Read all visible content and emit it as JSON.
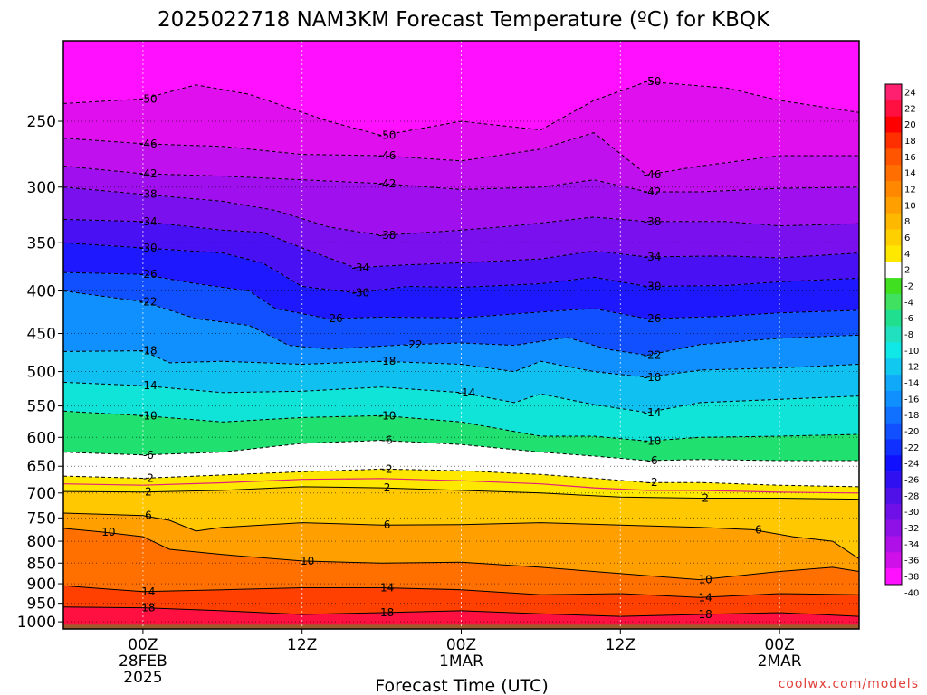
{
  "title": "2025022718 NAM3KM Forecast Temperature (ºC) for KBQK",
  "credit": "coolwx.com/models",
  "colors": {
    "ground": "#a05a2c",
    "freezing_line": "#e0207a",
    "credit_text": "#e0403a"
  },
  "chart_data": {
    "type": "heatmap",
    "title": "2025022718 NAM3KM Forecast Temperature (ºC) for KBQK",
    "xlabel": "Forecast Time (UTC)",
    "ylabel": "",
    "x_ticks": [
      {
        "hour": 6,
        "lines": [
          "00Z",
          "28FEB",
          "2025"
        ]
      },
      {
        "hour": 18,
        "lines": [
          "12Z"
        ]
      },
      {
        "hour": 30,
        "lines": [
          "00Z",
          "1MAR"
        ]
      },
      {
        "hour": 42,
        "lines": [
          "12Z"
        ]
      },
      {
        "hour": 54,
        "lines": [
          "00Z",
          "2MAR"
        ]
      }
    ],
    "xlim": [
      0,
      60
    ],
    "y_ticks": [
      250,
      300,
      350,
      400,
      450,
      500,
      550,
      600,
      650,
      700,
      750,
      800,
      850,
      900,
      950,
      1000
    ],
    "y_scale": "log-pressure (hPa)",
    "ylim": [
      1020,
      200
    ],
    "grid": true,
    "colorbar": {
      "labels": [
        "24",
        "22",
        "20",
        "18",
        "16",
        "14",
        "12",
        "10",
        "8",
        "6",
        "4",
        "2",
        "-2",
        "-4",
        "-6",
        "-8",
        "-10",
        "-12",
        "-14",
        "-16",
        "-18",
        "-20",
        "-22",
        "-24",
        "-26",
        "-28",
        "-30",
        "-32",
        "-34",
        "-36",
        "-38",
        "-40"
      ],
      "colors": [
        "#ff2070",
        "#ff1040",
        "#ff0000",
        "#ff3000",
        "#ff5500",
        "#ff6e00",
        "#ff8800",
        "#ffa000",
        "#ffb800",
        "#ffd000",
        "#ffe800",
        "#ffffff",
        "#40e020",
        "#40e060",
        "#20e090",
        "#20e0c0",
        "#10e8e8",
        "#10c8f0",
        "#10a8f8",
        "#1090ff",
        "#1070ff",
        "#1050ff",
        "#1030ff",
        "#1010ff",
        "#3010f0",
        "#5010e8",
        "#7010e8",
        "#9010e8",
        "#b010e8",
        "#d010e8",
        "#ff10ff"
      ]
    },
    "isotherms": [
      {
        "label": "-50",
        "pts": [
          [
            0,
            238
          ],
          [
            6,
            235
          ],
          [
            10,
            226
          ],
          [
            14,
            232
          ],
          [
            20,
            250
          ],
          [
            24,
            260
          ],
          [
            30,
            250
          ],
          [
            36,
            256
          ],
          [
            40,
            236
          ],
          [
            44,
            224
          ],
          [
            50,
            228
          ],
          [
            54,
            236
          ],
          [
            60,
            244
          ]
        ]
      },
      {
        "label": "-46",
        "pts": [
          [
            0,
            262
          ],
          [
            6,
            266
          ],
          [
            12,
            268
          ],
          [
            18,
            274
          ],
          [
            24,
            275
          ],
          [
            30,
            279
          ],
          [
            36,
            270
          ],
          [
            40,
            258
          ],
          [
            44,
            290
          ],
          [
            48,
            283
          ],
          [
            54,
            275
          ],
          [
            60,
            275
          ]
        ]
      },
      {
        "label": "-42",
        "pts": [
          [
            0,
            283
          ],
          [
            6,
            289
          ],
          [
            12,
            291
          ],
          [
            18,
            294
          ],
          [
            24,
            297
          ],
          [
            30,
            302
          ],
          [
            36,
            300
          ],
          [
            40,
            294
          ],
          [
            44,
            304
          ],
          [
            48,
            304
          ],
          [
            54,
            301
          ],
          [
            60,
            300
          ]
        ]
      },
      {
        "label": "-38",
        "pts": [
          [
            0,
            300
          ],
          [
            6,
            306
          ],
          [
            12,
            312
          ],
          [
            16,
            320
          ],
          [
            20,
            335
          ],
          [
            24,
            343
          ],
          [
            30,
            338
          ],
          [
            34,
            334
          ],
          [
            40,
            326
          ],
          [
            44,
            330
          ],
          [
            50,
            330
          ],
          [
            54,
            334
          ],
          [
            60,
            332
          ]
        ]
      },
      {
        "label": "-34",
        "pts": [
          [
            0,
            328
          ],
          [
            6,
            330
          ],
          [
            12,
            338
          ],
          [
            15,
            340
          ],
          [
            18,
            355
          ],
          [
            22,
            375
          ],
          [
            26,
            372
          ],
          [
            30,
            370
          ],
          [
            36,
            366
          ],
          [
            40,
            358
          ],
          [
            44,
            364
          ],
          [
            50,
            363
          ],
          [
            54,
            365
          ],
          [
            60,
            360
          ]
        ]
      },
      {
        "label": "-30",
        "pts": [
          [
            0,
            350
          ],
          [
            6,
            355
          ],
          [
            12,
            360
          ],
          [
            15,
            370
          ],
          [
            18,
            395
          ],
          [
            22,
            402
          ],
          [
            26,
            395
          ],
          [
            30,
            396
          ],
          [
            36,
            392
          ],
          [
            40,
            385
          ],
          [
            44,
            395
          ],
          [
            50,
            394
          ],
          [
            54,
            390
          ],
          [
            60,
            386
          ]
        ]
      },
      {
        "label": "-26",
        "pts": [
          [
            0,
            380
          ],
          [
            6,
            382
          ],
          [
            10,
            392
          ],
          [
            14,
            400
          ],
          [
            16,
            420
          ],
          [
            20,
            432
          ],
          [
            24,
            430
          ],
          [
            30,
            431
          ],
          [
            36,
            424
          ],
          [
            40,
            420
          ],
          [
            44,
            432
          ],
          [
            50,
            429
          ],
          [
            54,
            425
          ],
          [
            60,
            422
          ]
        ]
      },
      {
        "label": "-22",
        "pts": [
          [
            0,
            400
          ],
          [
            6,
            412
          ],
          [
            10,
            432
          ],
          [
            14,
            440
          ],
          [
            17,
            465
          ],
          [
            20,
            470
          ],
          [
            26,
            464
          ],
          [
            30,
            462
          ],
          [
            34,
            465
          ],
          [
            38,
            455
          ],
          [
            41,
            470
          ],
          [
            44,
            478
          ],
          [
            48,
            464
          ],
          [
            54,
            456
          ],
          [
            60,
            452
          ]
        ]
      },
      {
        "label": "-18",
        "pts": [
          [
            0,
            473
          ],
          [
            6,
            472
          ],
          [
            8,
            488
          ],
          [
            12,
            486
          ],
          [
            18,
            490
          ],
          [
            24,
            486
          ],
          [
            30,
            490
          ],
          [
            34,
            500
          ],
          [
            36,
            486
          ],
          [
            40,
            500
          ],
          [
            44,
            508
          ],
          [
            48,
            498
          ],
          [
            54,
            495
          ],
          [
            60,
            490
          ]
        ]
      },
      {
        "label": "-14",
        "pts": [
          [
            0,
            515
          ],
          [
            6,
            520
          ],
          [
            12,
            530
          ],
          [
            18,
            528
          ],
          [
            24,
            522
          ],
          [
            30,
            530
          ],
          [
            34,
            545
          ],
          [
            36,
            532
          ],
          [
            40,
            548
          ],
          [
            44,
            560
          ],
          [
            48,
            545
          ],
          [
            54,
            540
          ],
          [
            60,
            535
          ]
        ]
      },
      {
        "label": "-10",
        "pts": [
          [
            0,
            558
          ],
          [
            6,
            565
          ],
          [
            12,
            575
          ],
          [
            18,
            568
          ],
          [
            24,
            565
          ],
          [
            30,
            575
          ],
          [
            36,
            598
          ],
          [
            40,
            598
          ],
          [
            44,
            606
          ],
          [
            48,
            600
          ],
          [
            54,
            598
          ],
          [
            60,
            595
          ]
        ]
      },
      {
        "label": "-6",
        "pts": [
          [
            0,
            625
          ],
          [
            6,
            630
          ],
          [
            12,
            625
          ],
          [
            18,
            610
          ],
          [
            24,
            605
          ],
          [
            30,
            612
          ],
          [
            36,
            625
          ],
          [
            40,
            632
          ],
          [
            44,
            640
          ],
          [
            48,
            638
          ],
          [
            54,
            640
          ],
          [
            60,
            640
          ]
        ]
      },
      {
        "label": "-2",
        "pts": [
          [
            0,
            668
          ],
          [
            6,
            672
          ],
          [
            12,
            666
          ],
          [
            18,
            660
          ],
          [
            24,
            655
          ],
          [
            30,
            658
          ],
          [
            36,
            665
          ],
          [
            40,
            672
          ],
          [
            44,
            680
          ],
          [
            48,
            680
          ],
          [
            54,
            685
          ],
          [
            60,
            688
          ]
        ]
      },
      {
        "label": "2",
        "pts": [
          [
            0,
            697
          ],
          [
            6,
            698
          ],
          [
            12,
            695
          ],
          [
            18,
            688
          ],
          [
            24,
            690
          ],
          [
            30,
            695
          ],
          [
            36,
            700
          ],
          [
            42,
            708
          ],
          [
            48,
            710
          ],
          [
            54,
            710
          ],
          [
            60,
            712
          ]
        ]
      },
      {
        "label": "6",
        "pts": [
          [
            0,
            740
          ],
          [
            6,
            745
          ],
          [
            8,
            755
          ],
          [
            10,
            778
          ],
          [
            12,
            770
          ],
          [
            18,
            760
          ],
          [
            24,
            765
          ],
          [
            30,
            764
          ],
          [
            36,
            760
          ],
          [
            42,
            765
          ],
          [
            48,
            770
          ],
          [
            52,
            775
          ],
          [
            55,
            790
          ],
          [
            58,
            800
          ],
          [
            60,
            840
          ]
        ]
      },
      {
        "label": "10",
        "pts": [
          [
            0,
            772
          ],
          [
            3,
            780
          ],
          [
            6,
            790
          ],
          [
            8,
            818
          ],
          [
            12,
            830
          ],
          [
            18,
            845
          ],
          [
            24,
            850
          ],
          [
            30,
            848
          ],
          [
            36,
            860
          ],
          [
            44,
            880
          ],
          [
            48,
            890
          ],
          [
            54,
            870
          ],
          [
            58,
            860
          ],
          [
            60,
            870
          ]
        ]
      },
      {
        "label": "14",
        "pts": [
          [
            0,
            905
          ],
          [
            6,
            920
          ],
          [
            12,
            915
          ],
          [
            18,
            910
          ],
          [
            24,
            910
          ],
          [
            30,
            915
          ],
          [
            36,
            928
          ],
          [
            42,
            925
          ],
          [
            48,
            935
          ],
          [
            54,
            925
          ],
          [
            60,
            928
          ]
        ]
      },
      {
        "label": "18",
        "pts": [
          [
            0,
            960
          ],
          [
            6,
            962
          ],
          [
            12,
            970
          ],
          [
            18,
            980
          ],
          [
            24,
            975
          ],
          [
            30,
            970
          ],
          [
            36,
            978
          ],
          [
            42,
            985
          ],
          [
            48,
            980
          ],
          [
            54,
            975
          ],
          [
            60,
            985
          ]
        ]
      }
    ]
  }
}
